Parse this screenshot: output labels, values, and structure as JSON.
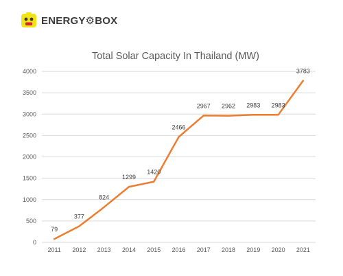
{
  "logo": {
    "text": "ENERGY⚙BOX",
    "icon": "energybox-battery-face-icon"
  },
  "colors": {
    "line": "#ED7D31",
    "grid": "#d9d9d9",
    "logo_yellow": "#F2E318",
    "logo_red": "#D7262C"
  },
  "chart_data": {
    "type": "line",
    "title": "Total Solar Capacity In Thailand (MW)",
    "xlabel": "",
    "ylabel": "",
    "categories": [
      "2011",
      "2012",
      "2013",
      "2014",
      "2015",
      "2016",
      "2017",
      "2018",
      "2019",
      "2020",
      "2021"
    ],
    "series": [
      {
        "values": [
          79,
          377,
          824,
          1299,
          1420,
          2466,
          2967,
          2962,
          2983,
          2983,
          3783
        ]
      }
    ],
    "ylim": [
      0,
      4000
    ],
    "yticks": [
      "0",
      "500",
      "1000",
      "1500",
      "2000",
      "2500",
      "3000",
      "3500",
      "4000"
    ],
    "data_labels": [
      "79",
      "377",
      "824",
      "1299",
      "1420",
      "2466",
      "2967",
      "2962",
      "2983",
      "2983",
      "3783"
    ],
    "grid": true,
    "legend": "none"
  }
}
